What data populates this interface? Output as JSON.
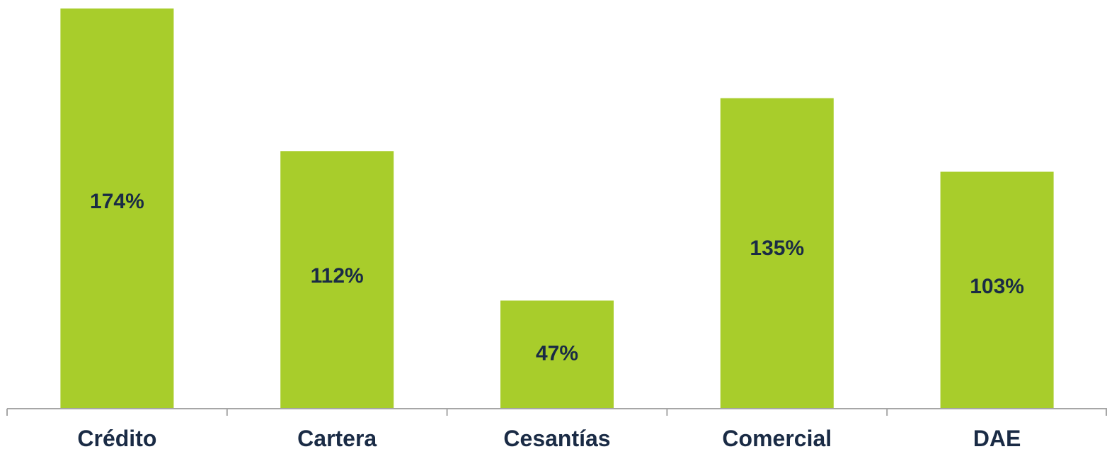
{
  "chart_data": {
    "type": "bar",
    "categories": [
      "Crédito",
      "Cartera",
      "Cesantías",
      "Comercial",
      "DAE"
    ],
    "values": [
      174,
      112,
      47,
      135,
      103
    ],
    "value_labels": [
      "174%",
      "112%",
      "47%",
      "135%",
      "103%"
    ],
    "unit": "%",
    "ylim": [
      0,
      174
    ],
    "grid": false,
    "bar_color": "#a8cd2b",
    "label_color": "#1a2b45",
    "axis_color": "#a6a6a6"
  }
}
